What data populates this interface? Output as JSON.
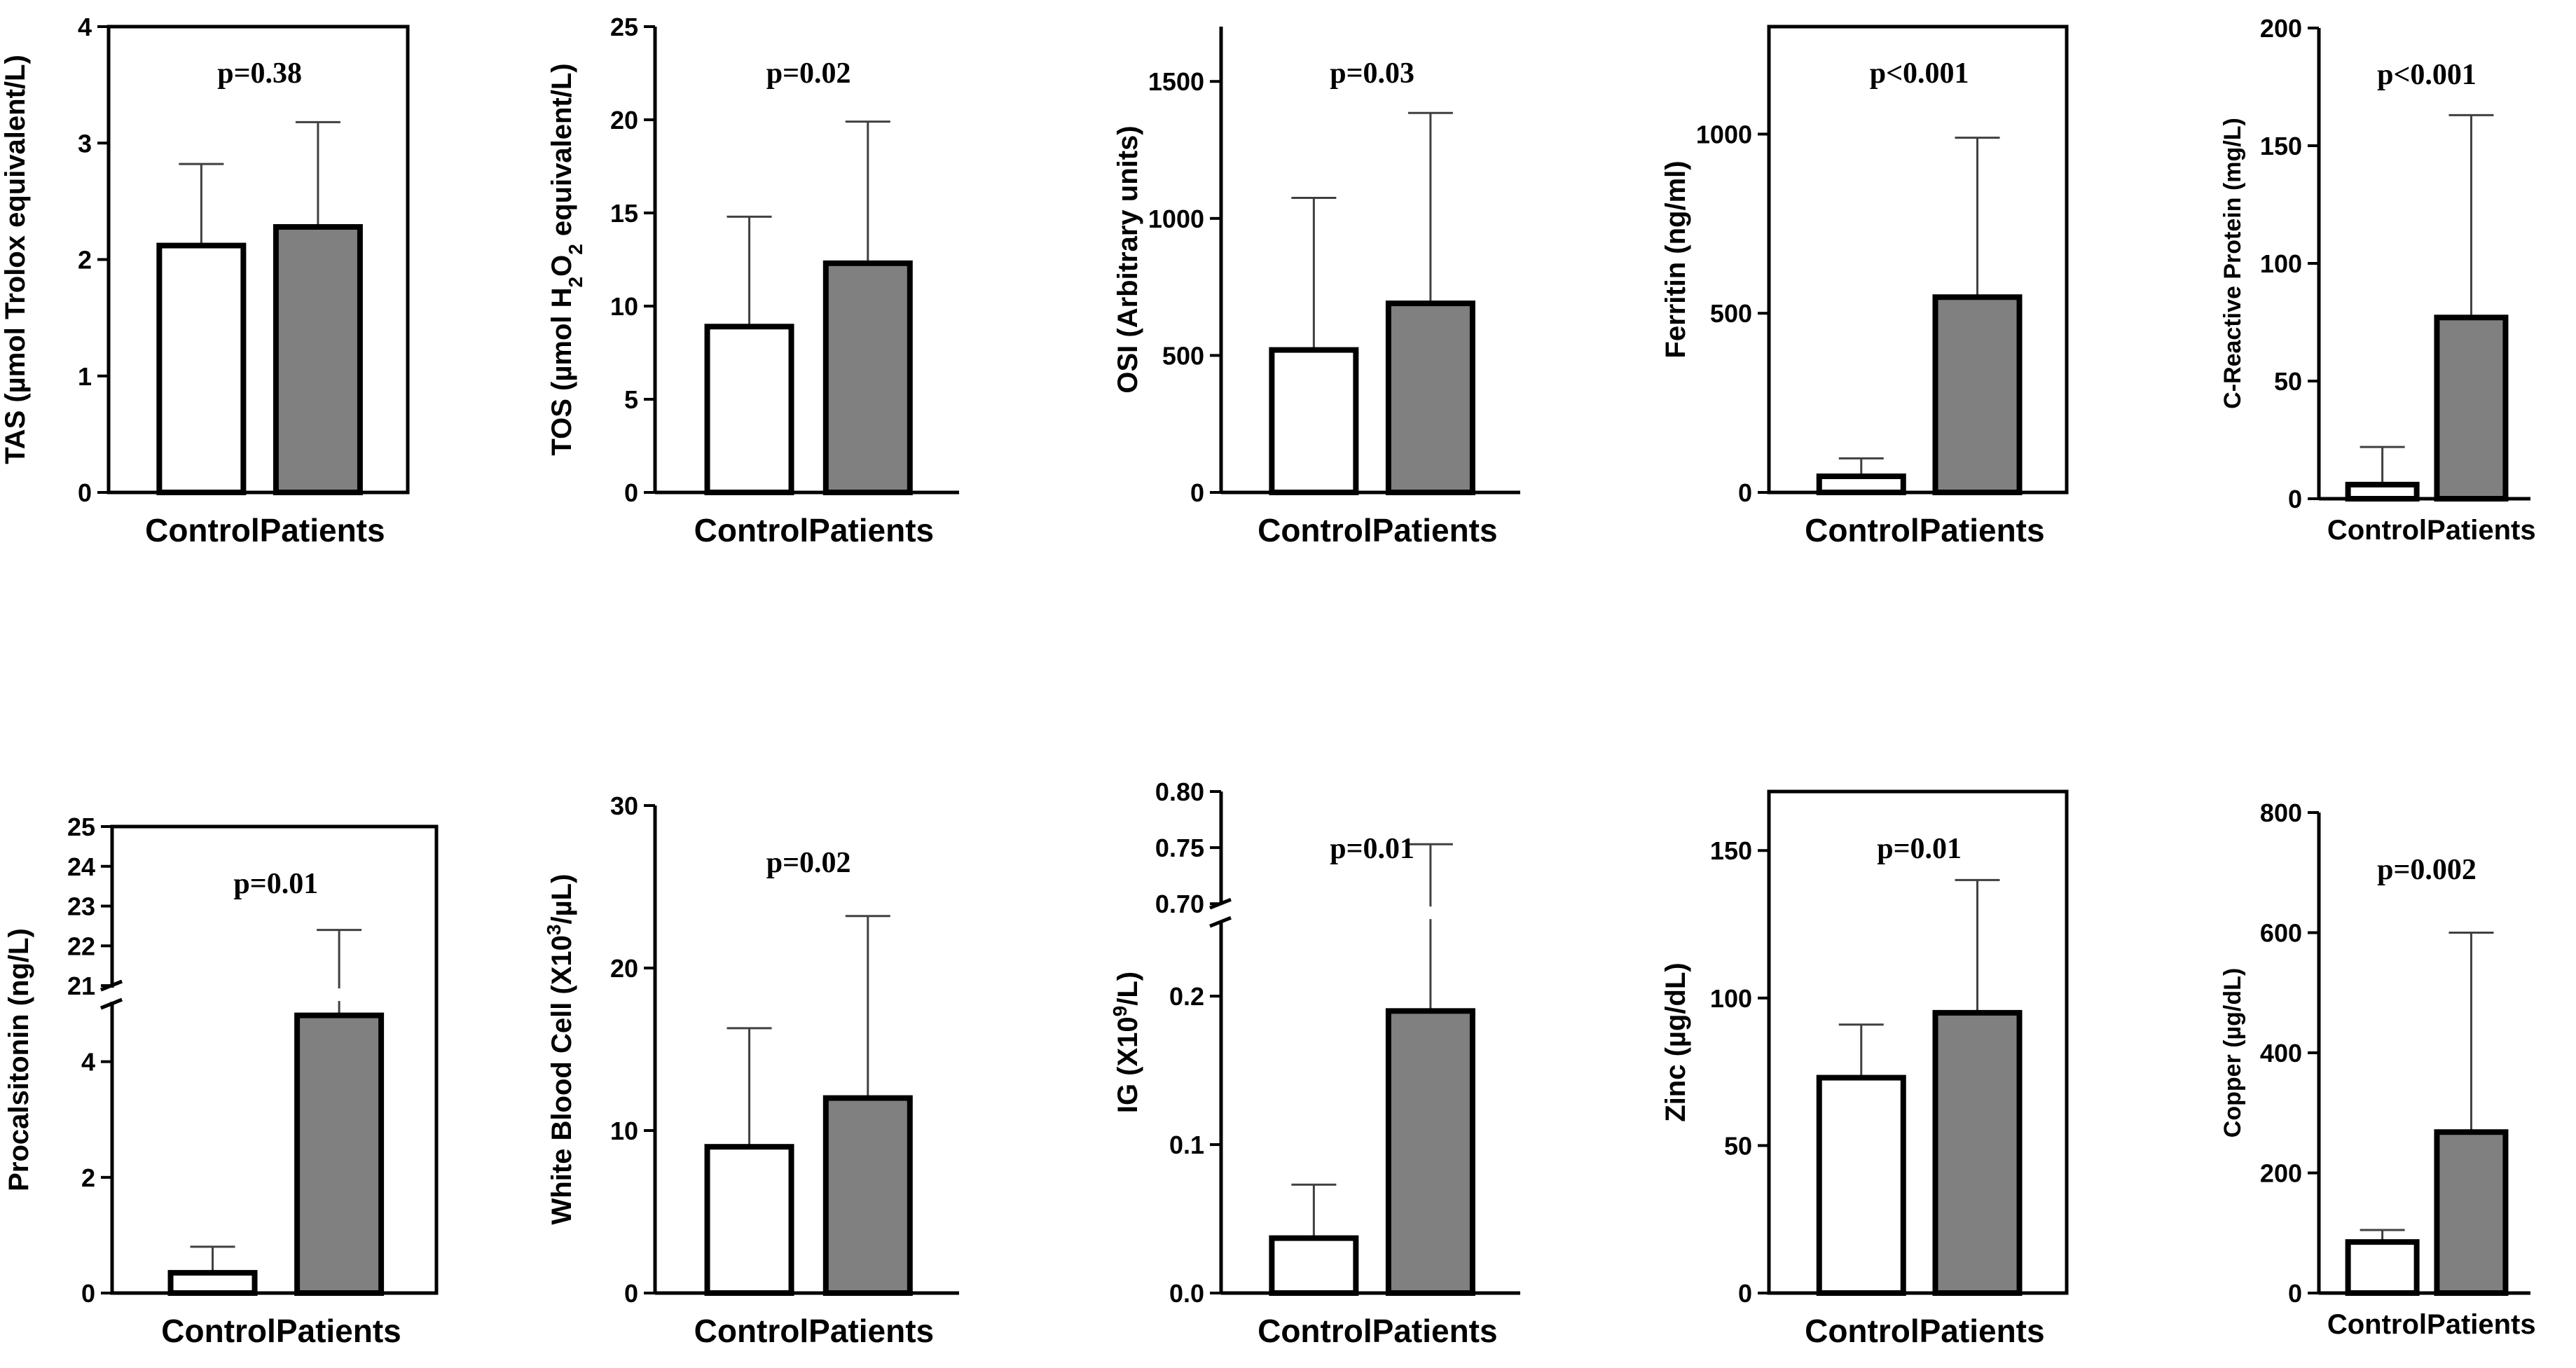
{
  "chart_data": [
    {
      "type": "bar",
      "ylabel": "TAS (µmol Trolox equivalent/L)",
      "categories": [
        "Control",
        "Patients"
      ],
      "values": [
        2.12,
        2.28
      ],
      "errors": [
        0.7,
        0.9
      ],
      "ylim": [
        0,
        4
      ],
      "yticks": [
        0,
        1,
        2,
        3,
        4
      ],
      "annotation": "p=0.38",
      "colors": [
        "#ffffff",
        "#808080"
      ]
    },
    {
      "type": "bar",
      "ylabel": "TOS (µmol H2O2 equivalent/L)",
      "ylabel_parts": [
        "TOS (µmol H",
        "2",
        "O",
        "2",
        " equivalent/L)"
      ],
      "categories": [
        "Control",
        "Patients"
      ],
      "values": [
        8.9,
        12.3
      ],
      "errors": [
        5.9,
        7.6
      ],
      "ylim": [
        0,
        25
      ],
      "yticks": [
        0,
        5,
        10,
        15,
        20,
        25
      ],
      "annotation": "p=0.02",
      "colors": [
        "#ffffff",
        "#808080"
      ]
    },
    {
      "type": "bar",
      "ylabel": "OSI (Arbitrary units)",
      "categories": [
        "Control",
        "Patients"
      ],
      "values": [
        520,
        690
      ],
      "errors": [
        555,
        695
      ],
      "ylim": [
        0,
        1700
      ],
      "yticks": [
        0,
        500,
        1000,
        1500
      ],
      "annotation": "p=0.03",
      "colors": [
        "#ffffff",
        "#808080"
      ]
    },
    {
      "type": "bar",
      "ylabel": "Ferritin (ng/ml)",
      "categories": [
        "Control",
        "Patients"
      ],
      "values": [
        45,
        545
      ],
      "errors": [
        50,
        445
      ],
      "ylim": [
        0,
        1300
      ],
      "yticks": [
        0,
        500,
        1000
      ],
      "annotation": "p<0.001",
      "colors": [
        "#ffffff",
        "#808080"
      ]
    },
    {
      "type": "bar",
      "ylabel": "C-Reactive Protein (mg/L)",
      "categories": [
        "Control",
        "Patients"
      ],
      "values": [
        6,
        77
      ],
      "errors": [
        16,
        86
      ],
      "ylim": [
        0,
        200
      ],
      "yticks": [
        0,
        50,
        100,
        150,
        200
      ],
      "annotation": "p<0.001",
      "colors": [
        "#ffffff",
        "#808080"
      ]
    },
    {
      "type": "bar",
      "ylabel": "Procalsitonin (ng/L)",
      "categories": [
        "Control",
        "Patients"
      ],
      "values": [
        0.35,
        4.8
      ],
      "error_tops": [
        0.8,
        22.4
      ],
      "axis_break": {
        "lower": [
          0,
          5
        ],
        "upper": [
          21,
          25
        ]
      },
      "yticks": [
        0,
        2,
        4,
        21,
        22,
        23,
        24,
        25
      ],
      "annotation": "p=0.01",
      "colors": [
        "#ffffff",
        "#808080"
      ]
    },
    {
      "type": "bar",
      "ylabel": "White Blood Cell (X10³/µL)",
      "ylabel_parts": [
        "White Blood Cell (X10",
        "3",
        "/µL)"
      ],
      "categories": [
        "Control",
        "Patients"
      ],
      "values": [
        9.0,
        12.0
      ],
      "errors": [
        7.3,
        11.2
      ],
      "ylim": [
        0,
        30
      ],
      "yticks": [
        0,
        10,
        20,
        30
      ],
      "annotation": "p=0.02",
      "colors": [
        "#ffffff",
        "#808080"
      ]
    },
    {
      "type": "bar",
      "ylabel": "IG (X10⁹/L)",
      "ylabel_parts": [
        "IG (X10",
        "9",
        "/L)"
      ],
      "categories": [
        "Control",
        "Patients"
      ],
      "values": [
        0.037,
        0.19
      ],
      "error_tops": [
        0.073,
        0.753
      ],
      "axis_break": {
        "lower": [
          0,
          0.25
        ],
        "upper": [
          0.7,
          0.8
        ]
      },
      "yticks": [
        "0.0",
        "0.1",
        "0.2",
        "0.70",
        "0.75",
        "0.80"
      ],
      "annotation": "p=0.01",
      "colors": [
        "#ffffff",
        "#808080"
      ]
    },
    {
      "type": "bar",
      "ylabel": "Zinc (µg/dL)",
      "categories": [
        "Control",
        "Patients"
      ],
      "values": [
        73,
        95
      ],
      "errors": [
        18,
        45
      ],
      "ylim": [
        0,
        170
      ],
      "yticks": [
        0,
        50,
        100,
        150
      ],
      "annotation": "p=0.01",
      "colors": [
        "#ffffff",
        "#808080"
      ]
    },
    {
      "type": "bar",
      "ylabel": "Copper (µg/dL)",
      "categories": [
        "Control",
        "Patients"
      ],
      "values": [
        85,
        268
      ],
      "errors": [
        20,
        332
      ],
      "ylim": [
        0,
        800
      ],
      "yticks": [
        0,
        200,
        400,
        600,
        800
      ],
      "annotation": "p=0.002",
      "colors": [
        "#ffffff",
        "#808080"
      ]
    }
  ]
}
